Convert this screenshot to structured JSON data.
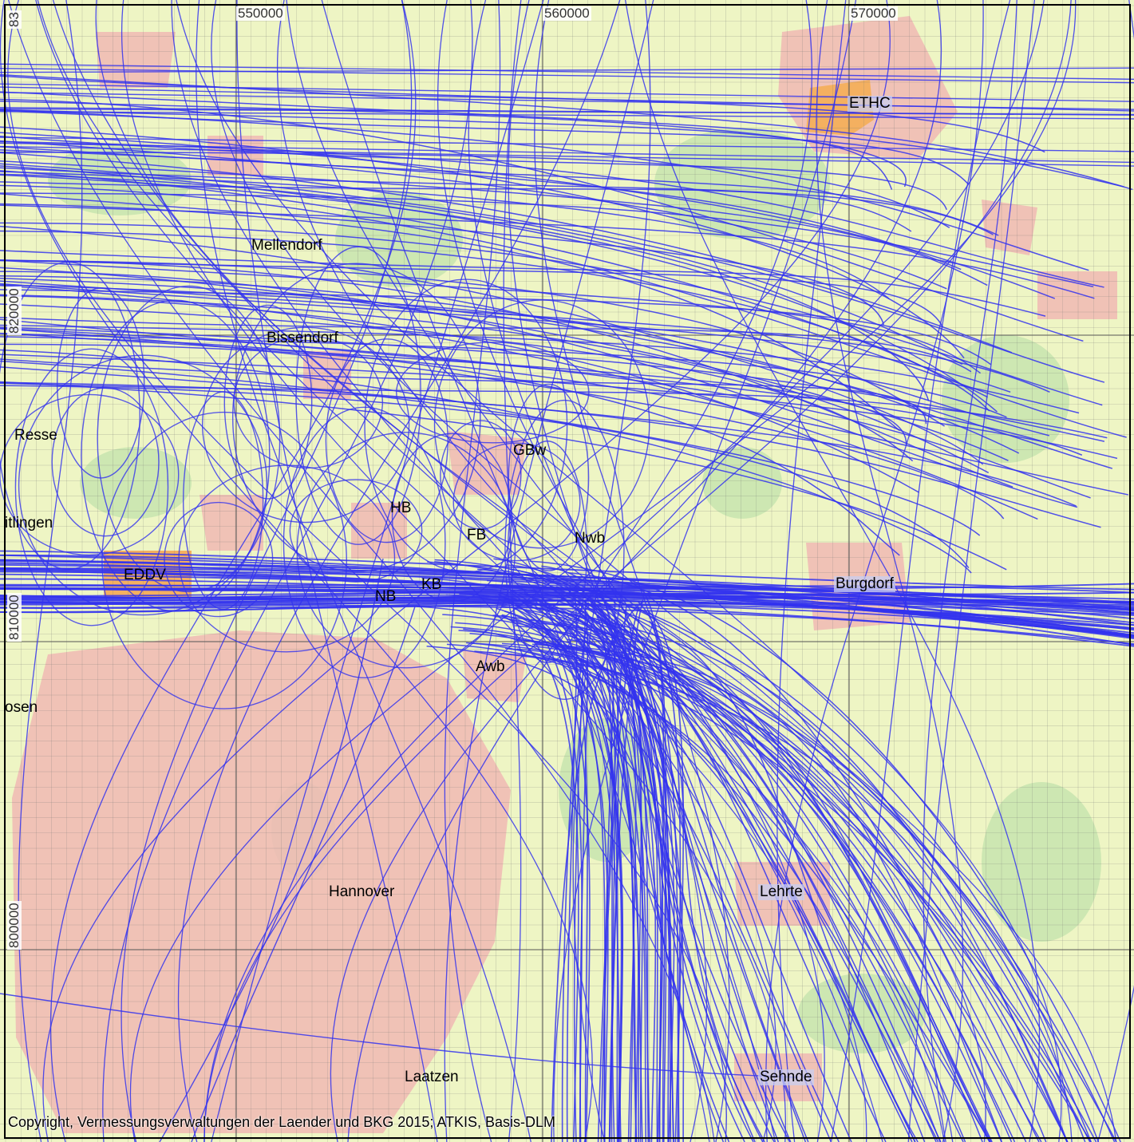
{
  "map": {
    "grid_ticks_x": [
      "550000",
      "560000",
      "570000"
    ],
    "grid_ticks_y": [
      "820000",
      "810000",
      "800000",
      "83"
    ],
    "places": [
      {
        "id": "mellendorf",
        "name": "Mellendorf"
      },
      {
        "id": "bissendorf",
        "name": "Bissendorf"
      },
      {
        "id": "resse",
        "name": "Resse"
      },
      {
        "id": "itlingen",
        "name": "itlingen"
      },
      {
        "id": "eddv",
        "name": "EDDV"
      },
      {
        "id": "hb",
        "name": "HB"
      },
      {
        "id": "fb",
        "name": "FB"
      },
      {
        "id": "gbw",
        "name": "GBw"
      },
      {
        "id": "nwb",
        "name": "Nwb"
      },
      {
        "id": "kb",
        "name": "KB"
      },
      {
        "id": "nb",
        "name": "NB"
      },
      {
        "id": "burgdorf",
        "name": "Burgdorf"
      },
      {
        "id": "ethc",
        "name": "ETHC"
      },
      {
        "id": "awb",
        "name": "Awb"
      },
      {
        "id": "osen",
        "name": "osen"
      },
      {
        "id": "hannover",
        "name": "Hannover"
      },
      {
        "id": "lehrte",
        "name": "Lehrte"
      },
      {
        "id": "laatzen",
        "name": "Laatzen"
      },
      {
        "id": "sehnde",
        "name": "Sehnde"
      }
    ],
    "copyright": "Copyright, Vermessungsverwaltungen der Laender und BKG 2015; ATKIS, Basis-DLM",
    "colors": {
      "background": "#eef5c4",
      "urban": "#f0b8b4",
      "forest": "#c9e6b0",
      "airport": "#f4b060",
      "track": "#3333ee",
      "grid": "#777777"
    }
  }
}
